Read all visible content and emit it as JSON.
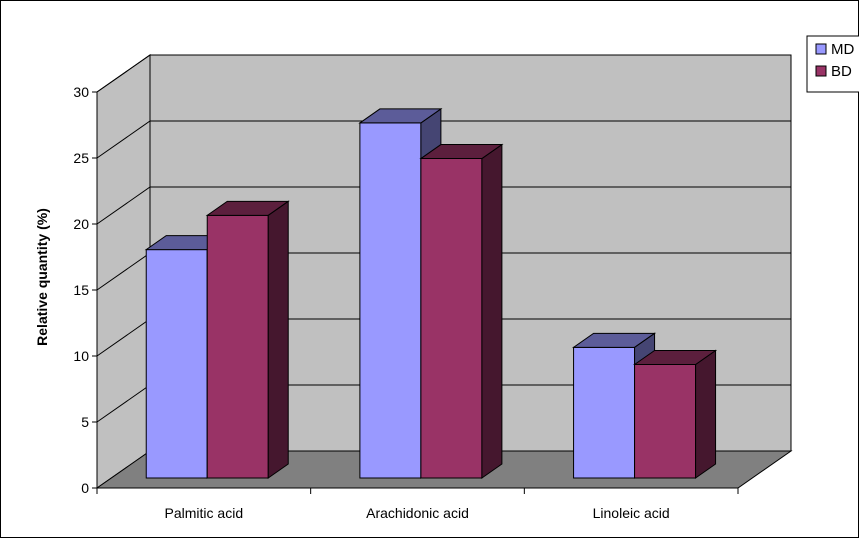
{
  "chart_data": {
    "type": "bar",
    "style": "3d-clustered-column",
    "categories": [
      "Palmitic acid",
      "Arachidonic acid",
      "Linoleic acid"
    ],
    "series": [
      {
        "name": "MD",
        "values": [
          17.3,
          26.9,
          9.9
        ]
      },
      {
        "name": "BD",
        "values": [
          19.9,
          24.2,
          8.6
        ]
      }
    ],
    "title": "",
    "xlabel": "",
    "ylabel": "Relative quantity (%)",
    "ylim": [
      0,
      30
    ],
    "yticks": [
      0,
      5,
      10,
      15,
      20,
      25,
      30
    ],
    "grid": true,
    "legend_position": "top-right"
  },
  "colors": {
    "MD": "#9999FF",
    "BD": "#993366",
    "wall": "#C0C0C0",
    "floor": "#808080"
  }
}
